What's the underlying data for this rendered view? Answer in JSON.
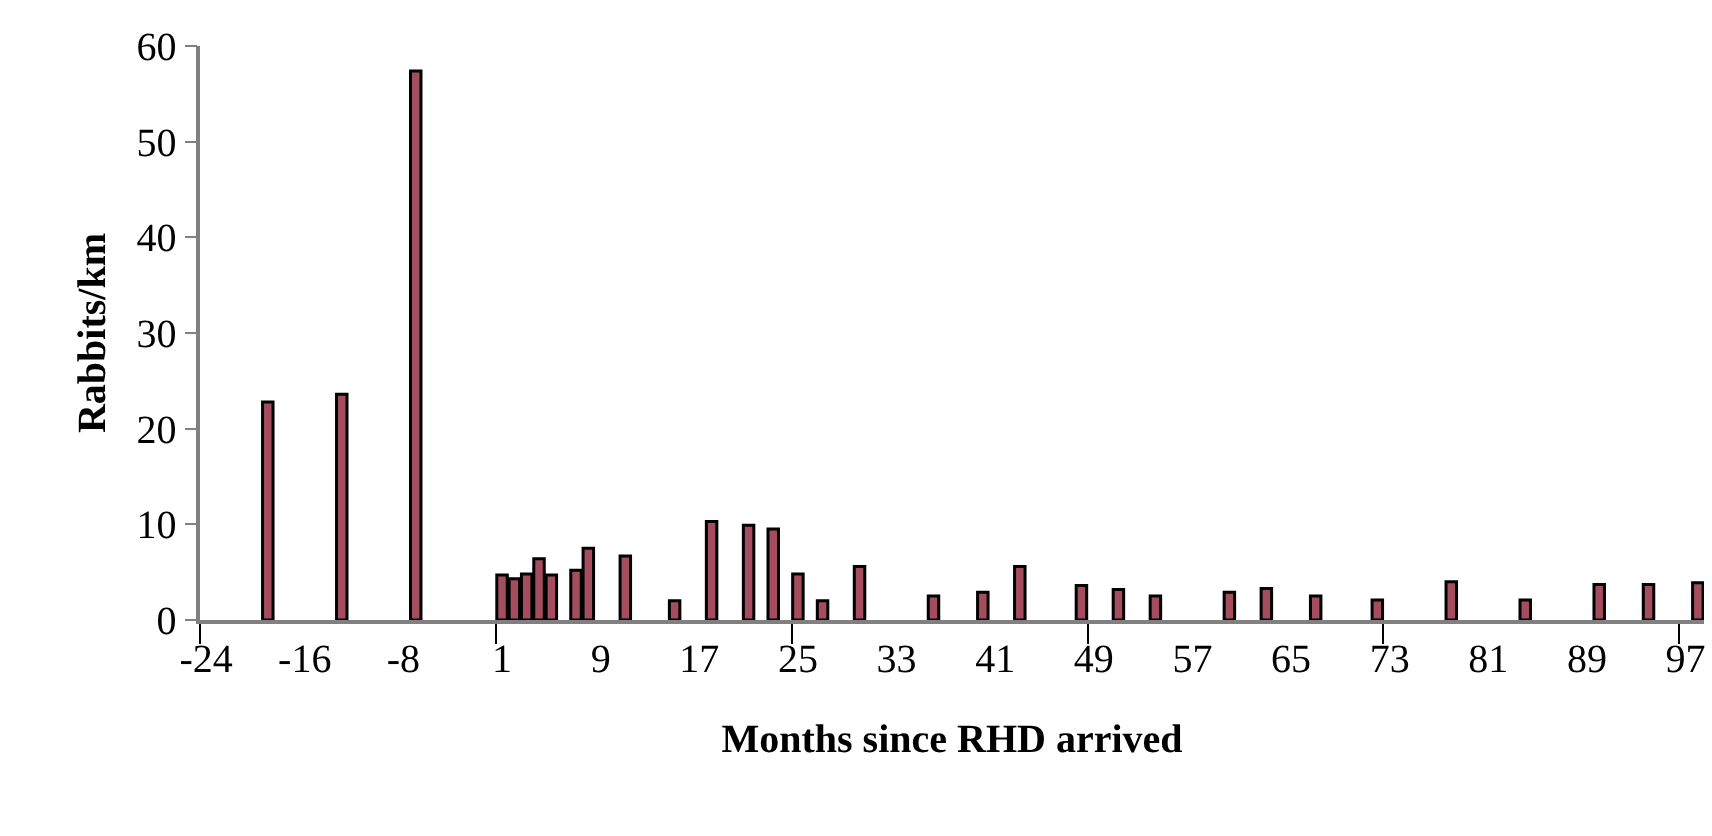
{
  "chart_data": {
    "type": "bar",
    "xlabel": "Months since RHD arrived",
    "ylabel": "Rabbits/km",
    "categories": [
      "-24",
      null,
      null,
      null,
      null,
      null,
      null,
      null,
      "-16",
      null,
      null,
      null,
      null,
      null,
      null,
      null,
      "-8",
      null,
      null,
      null,
      null,
      null,
      null,
      null,
      "1",
      null,
      null,
      null,
      null,
      null,
      null,
      null,
      "9",
      null,
      null,
      null,
      null,
      null,
      null,
      null,
      "17",
      null,
      null,
      null,
      null,
      null,
      null,
      null,
      "25",
      null,
      null,
      null,
      null,
      null,
      null,
      null,
      "33",
      null,
      null,
      null,
      null,
      null,
      null,
      null,
      "41",
      null,
      null,
      null,
      null,
      null,
      null,
      null,
      "49",
      null,
      null,
      null,
      null,
      null,
      null,
      null,
      "57",
      null,
      null,
      null,
      null,
      null,
      null,
      null,
      "65",
      null,
      null,
      null,
      null,
      null,
      null,
      null,
      "73",
      null,
      null,
      null,
      null,
      null,
      null,
      null,
      "81",
      null,
      null,
      null,
      null,
      null,
      null,
      null,
      "89",
      null,
      null,
      null,
      null,
      null,
      null,
      null,
      "97",
      null
    ],
    "values": [
      null,
      null,
      null,
      null,
      null,
      22.8,
      null,
      null,
      null,
      null,
      null,
      23.6,
      null,
      null,
      null,
      null,
      null,
      57.4,
      null,
      null,
      null,
      null,
      null,
      null,
      4.7,
      4.3,
      4.8,
      6.4,
      4.7,
      null,
      5.2,
      7.5,
      null,
      null,
      6.7,
      null,
      null,
      null,
      2.0,
      null,
      null,
      10.3,
      null,
      null,
      9.9,
      null,
      9.5,
      null,
      4.8,
      null,
      2.0,
      null,
      null,
      5.6,
      null,
      null,
      null,
      null,
      null,
      2.5,
      null,
      null,
      null,
      2.9,
      null,
      null,
      5.6,
      null,
      null,
      null,
      null,
      3.6,
      null,
      null,
      3.2,
      null,
      null,
      2.5,
      null,
      null,
      null,
      null,
      null,
      2.9,
      null,
      null,
      3.3,
      null,
      null,
      null,
      2.5,
      null,
      null,
      null,
      null,
      2.1,
      null,
      null,
      null,
      null,
      null,
      4.0,
      null,
      null,
      null,
      null,
      null,
      2.1,
      null,
      null,
      null,
      null,
      null,
      3.7,
      null,
      null,
      null,
      3.7,
      null,
      null,
      null,
      3.9
    ],
    "color": "#a34d5e",
    "ylim": [
      0,
      60
    ],
    "yticks": [
      0,
      10,
      20,
      30,
      40,
      50,
      60
    ]
  }
}
